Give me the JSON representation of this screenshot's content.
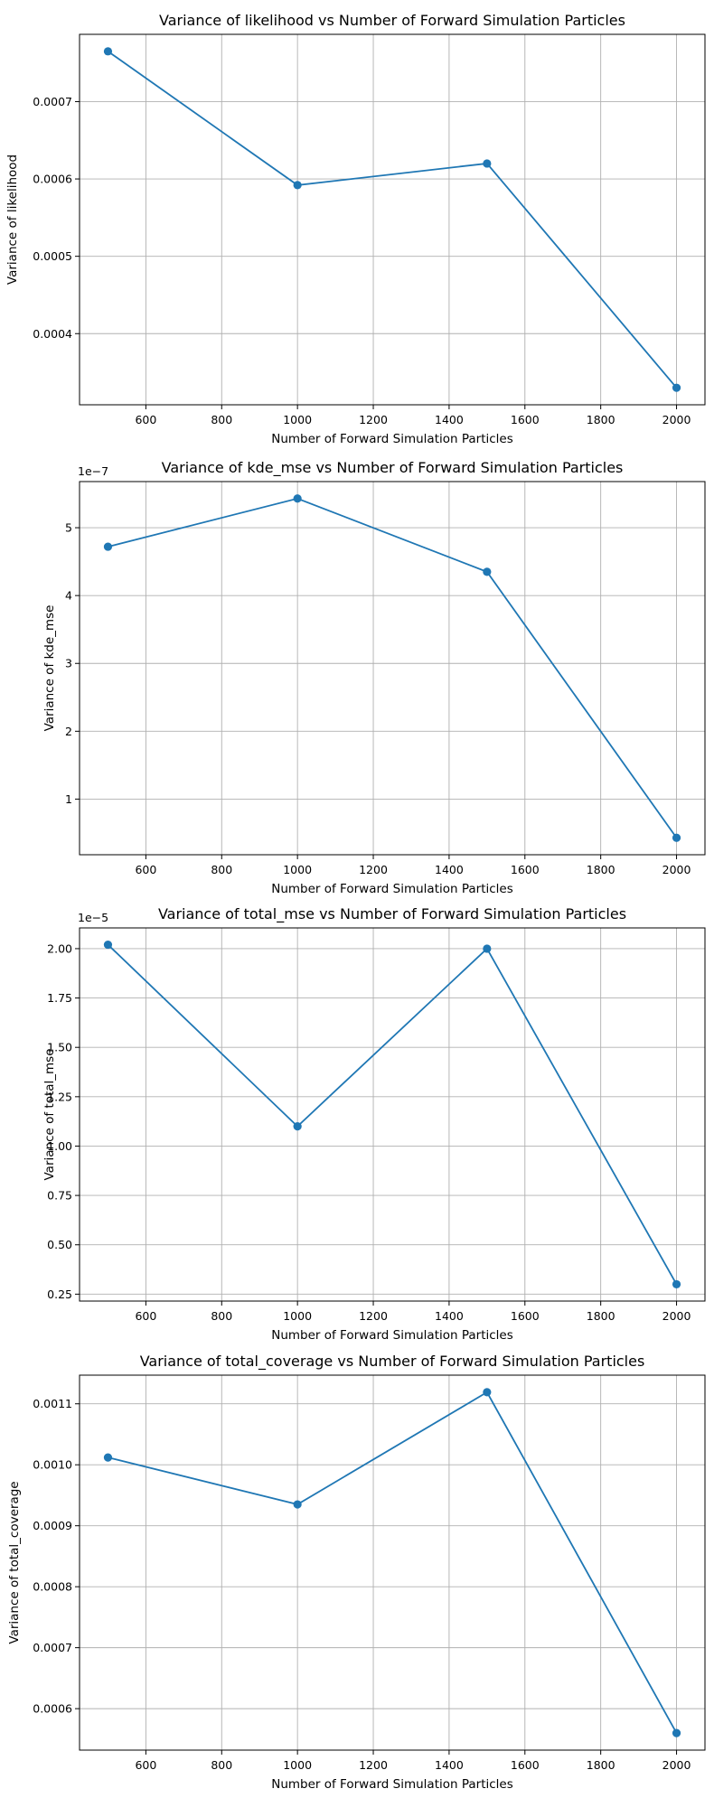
{
  "colors": {
    "series": "#1f77b4",
    "grid": "#b0b0b0"
  },
  "chart_data": [
    {
      "type": "line",
      "title": "Variance of likelihood vs Number of Forward Simulation Particles",
      "xlabel": "Number of Forward Simulation Particles",
      "ylabel": "Variance of likelihood",
      "x": [
        500,
        1000,
        1500,
        2000
      ],
      "values": [
        0.000765,
        0.000592,
        0.00062,
        0.00033
      ],
      "xlim": [
        425,
        2075
      ],
      "ylim": [
        0.000308,
        0.000787
      ],
      "xticks": [
        600,
        800,
        1000,
        1200,
        1400,
        1600,
        1800,
        2000
      ],
      "yticks": [
        0.0004,
        0.0005,
        0.0006,
        0.0007
      ],
      "ytick_labels": [
        "0.0004",
        "0.0005",
        "0.0006",
        "0.0007"
      ],
      "y_offset": "",
      "grid": true,
      "marker": "circle"
    },
    {
      "type": "line",
      "title": "Variance of kde_mse vs Number of Forward Simulation Particles",
      "xlabel": "Number of Forward Simulation Particles",
      "ylabel": "Variance of kde_mse",
      "x": [
        500,
        1000,
        1500,
        2000
      ],
      "values": [
        4.72e-07,
        5.43e-07,
        4.35e-07,
        4.3e-08
      ],
      "xlim": [
        425,
        2075
      ],
      "ylim": [
        1.8e-08,
        5.68e-07
      ],
      "xticks": [
        600,
        800,
        1000,
        1200,
        1400,
        1600,
        1800,
        2000
      ],
      "yticks": [
        1e-07,
        2e-07,
        3e-07,
        4e-07,
        5e-07
      ],
      "ytick_labels": [
        "1",
        "2",
        "3",
        "4",
        "5"
      ],
      "y_offset": "1e−7",
      "grid": true,
      "marker": "circle"
    },
    {
      "type": "line",
      "title": "Variance of total_mse vs Number of Forward Simulation Particles",
      "xlabel": "Number of Forward Simulation Particles",
      "ylabel": "Variance of total_mse",
      "x": [
        500,
        1000,
        1500,
        2000
      ],
      "values": [
        2.02e-05,
        1.1e-05,
        2e-05,
        3e-06
      ],
      "xlim": [
        425,
        2075
      ],
      "ylim": [
        2.15e-06,
        2.105e-05
      ],
      "xticks": [
        600,
        800,
        1000,
        1200,
        1400,
        1600,
        1800,
        2000
      ],
      "yticks": [
        2.5e-06,
        5e-06,
        7.5e-06,
        1e-05,
        1.25e-05,
        1.5e-05,
        1.75e-05,
        2e-05
      ],
      "ytick_labels": [
        "0.25",
        "0.50",
        "0.75",
        "1.00",
        "1.25",
        "1.50",
        "1.75",
        "2.00"
      ],
      "y_offset": "1e−5",
      "grid": true,
      "marker": "circle"
    },
    {
      "type": "line",
      "title": "Variance of total_coverage vs Number of Forward Simulation Particles",
      "xlabel": "Number of Forward Simulation Particles",
      "ylabel": "Variance of total_coverage",
      "x": [
        500,
        1000,
        1500,
        2000
      ],
      "values": [
        0.001012,
        0.000935,
        0.001119,
        0.00056
      ],
      "xlim": [
        425,
        2075
      ],
      "ylim": [
        0.000532,
        0.001147
      ],
      "xticks": [
        600,
        800,
        1000,
        1200,
        1400,
        1600,
        1800,
        2000
      ],
      "yticks": [
        0.0006,
        0.0007,
        0.0008,
        0.0009,
        0.001,
        0.0011
      ],
      "ytick_labels": [
        "0.0006",
        "0.0007",
        "0.0008",
        "0.0009",
        "0.0010",
        "0.0011"
      ],
      "y_offset": "",
      "grid": true,
      "marker": "circle"
    }
  ]
}
